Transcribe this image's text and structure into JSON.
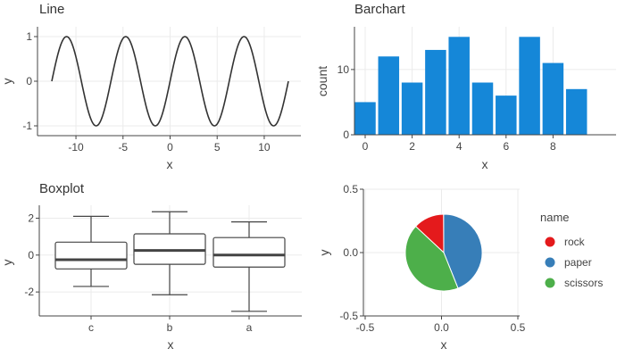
{
  "chart_data": [
    {
      "type": "line",
      "title": "Line",
      "xlabel": "x",
      "ylabel": "y",
      "xlim": [
        -12.566,
        12.566
      ],
      "ylim": [
        -1.1,
        1.1
      ],
      "xticks": [
        -10,
        -5,
        0,
        5,
        10
      ],
      "yticks": [
        -1,
        0,
        1
      ],
      "series": [
        {
          "function": "sin",
          "x_start": -12.566,
          "x_end": 12.566,
          "points": 400
        }
      ],
      "color": "#333333",
      "grid": true
    },
    {
      "type": "bar",
      "title": "Barchart",
      "xlabel": "x",
      "ylabel": "count",
      "categories": [
        0,
        1,
        2,
        3,
        4,
        5,
        6,
        7,
        8,
        9
      ],
      "values": [
        5,
        12,
        8,
        13,
        15,
        8,
        6,
        15,
        11,
        7
      ],
      "xticks": [
        0,
        2,
        4,
        6,
        8
      ],
      "yticks": [
        0,
        10
      ],
      "xlim": [
        -0.6,
        9.6
      ],
      "ylim": [
        0,
        16
      ],
      "color": "#1587d8",
      "grid": true
    },
    {
      "type": "box",
      "title": "Boxplot",
      "xlabel": "x",
      "ylabel": "y",
      "categories": [
        "c",
        "b",
        "a"
      ],
      "boxes": [
        {
          "name": "c",
          "min": -1.7,
          "q1": -0.75,
          "median": -0.25,
          "q3": 0.7,
          "max": 2.1
        },
        {
          "name": "b",
          "min": -2.15,
          "q1": -0.5,
          "median": 0.25,
          "q3": 1.15,
          "max": 2.35
        },
        {
          "name": "a",
          "min": -3.05,
          "q1": -0.65,
          "median": 0.0,
          "q3": 0.95,
          "max": 1.8
        }
      ],
      "yticks": [
        -2,
        0,
        2
      ],
      "ylim": [
        -3.3,
        2.7
      ],
      "grid": true
    },
    {
      "type": "pie",
      "title": "",
      "xlabel": "x",
      "ylabel": "y",
      "xticks": [
        -0.5,
        0.0,
        0.5
      ],
      "yticks": [
        -0.5,
        0.0,
        0.5
      ],
      "xtick_labels": [
        "-0.5",
        "0.0",
        "0.5"
      ],
      "ytick_labels": [
        "-0.5",
        "0.0",
        "0.5"
      ],
      "legend_title": "name",
      "legend_position": "right",
      "slices": [
        {
          "name": "rock",
          "value": 0.13,
          "color": "#e41a1c"
        },
        {
          "name": "paper",
          "value": 0.44,
          "color": "#377eb8"
        },
        {
          "name": "scissors",
          "value": 0.43,
          "color": "#4daf4a"
        }
      ],
      "grid": true
    }
  ]
}
